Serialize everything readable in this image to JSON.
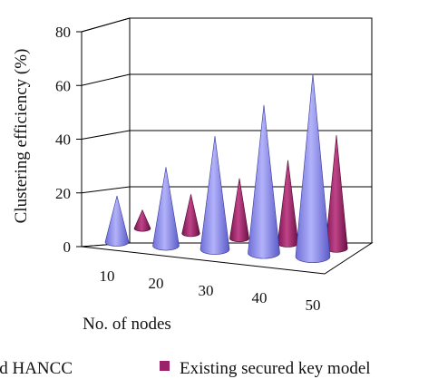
{
  "chart_data": {
    "type": "bar",
    "style": "3d-cone",
    "categories": [
      "10",
      "20",
      "30",
      "40",
      "50"
    ],
    "series": [
      {
        "name": "Proposed HANCC",
        "values": [
          20,
          34,
          49,
          64,
          79
        ],
        "color": "#8888ee"
      },
      {
        "name": "Existing secured key model",
        "values": [
          8,
          17,
          26,
          36,
          49
        ],
        "color": "#99226a"
      }
    ],
    "ylabel": "Clustering efficiency (%)",
    "xlabel": "No. of nodes",
    "yticks": [
      "0",
      "20",
      "40",
      "60",
      "80"
    ],
    "ylim": [
      0,
      80
    ],
    "grid": true,
    "legend": "bottom"
  }
}
